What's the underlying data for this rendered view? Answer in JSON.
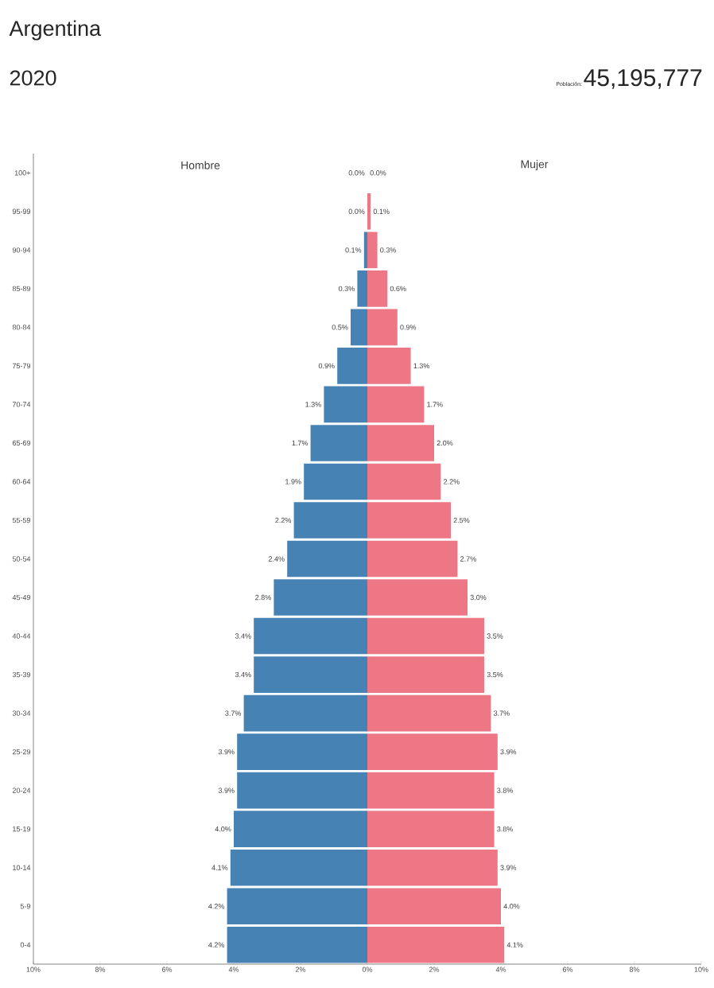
{
  "chart_data": [
    {
      "type": "bar",
      "orientation": "horizontal",
      "title": "Argentina",
      "subtitle": "2020",
      "annotations": [
        "Población:",
        "45,195,777"
      ],
      "xlabel": "Hombre",
      "categories": [
        "100+",
        "95-99",
        "90-94",
        "85-89",
        "80-84",
        "75-79",
        "70-74",
        "65-69",
        "60-64",
        "55-59",
        "50-54",
        "45-49",
        "40-44",
        "35-39",
        "30-34",
        "25-29",
        "20-24",
        "15-19",
        "10-14",
        "5-9",
        "0-4"
      ],
      "series": [
        {
          "color": "#4682b4",
          "values": [
            0.0,
            0.0,
            0.1,
            0.3,
            0.5,
            0.9,
            1.3,
            1.7,
            1.9,
            2.2,
            2.4,
            2.8,
            3.4,
            3.4,
            3.7,
            3.9,
            3.9,
            4.0,
            4.1,
            4.2,
            4.2
          ],
          "value_labels": [
            "0.0%",
            "0.0%",
            "0.1%",
            "0.3%",
            "0.5%",
            "0.9%",
            "1.3%",
            "1.7%",
            "1.9%",
            "2.2%",
            "2.4%",
            "2.8%",
            "3.4%",
            "3.4%",
            "3.7%",
            "3.9%",
            "3.9%",
            "4.0%",
            "4.1%",
            "4.2%",
            "4.2%"
          ]
        }
      ],
      "xlim": [
        10,
        0
      ],
      "xticks": [
        {
          "value": 10,
          "label": "10%"
        },
        {
          "value": 8,
          "label": "8%"
        },
        {
          "value": 6,
          "label": "6%"
        },
        {
          "value": 4,
          "label": "4%"
        },
        {
          "value": 2,
          "label": "2%"
        }
      ]
    },
    {
      "type": "bar",
      "orientation": "horizontal",
      "xlabel": "Mujer",
      "categories": [
        null,
        null,
        null,
        null,
        null,
        null,
        null,
        null,
        null,
        null,
        null,
        null,
        null,
        null,
        null,
        null,
        null,
        null,
        null,
        null,
        null
      ],
      "series": [
        {
          "color": "#ee7785",
          "values": [
            0.0,
            0.1,
            0.3,
            0.6,
            0.9,
            1.3,
            1.7,
            2.0,
            2.2,
            2.5,
            2.7,
            3.0,
            3.5,
            3.5,
            3.7,
            3.9,
            3.8,
            3.8,
            3.9,
            4.0,
            4.1
          ],
          "value_labels": [
            "0.0%",
            "0.1%",
            "0.3%",
            "0.6%",
            "0.9%",
            "1.3%",
            "1.7%",
            "2.0%",
            "2.2%",
            "2.5%",
            "2.7%",
            "3.0%",
            "3.5%",
            "3.5%",
            "3.7%",
            "3.9%",
            "3.8%",
            "3.8%",
            "3.9%",
            "4.0%",
            "4.1%"
          ]
        }
      ],
      "xlim": [
        0,
        10
      ],
      "xticks": [
        {
          "value": 0,
          "label": "0%"
        },
        {
          "value": 2,
          "label": "2%"
        },
        {
          "value": 4,
          "label": "4%"
        },
        {
          "value": 6,
          "label": "6%"
        },
        {
          "value": 8,
          "label": "8%"
        },
        {
          "value": 10,
          "label": "10%"
        }
      ],
      "tick_labels": "x"
    }
  ]
}
